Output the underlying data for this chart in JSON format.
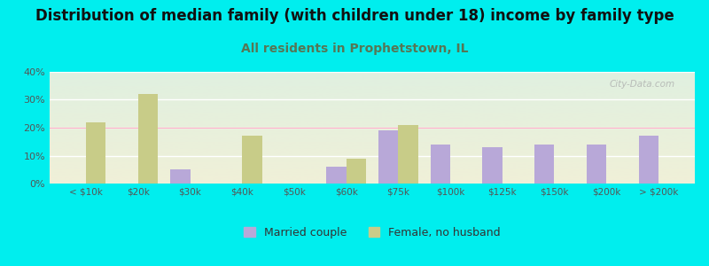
{
  "title": "Distribution of median family (with children under 18) income by family type",
  "subtitle": "All residents in Prophetstown, IL",
  "categories": [
    "< $10k",
    "$20k",
    "$30k",
    "$40k",
    "$50k",
    "$60k",
    "$75k",
    "$100k",
    "$125k",
    "$150k",
    "$200k",
    "> $200k"
  ],
  "married_couple": [
    0,
    0,
    5,
    0,
    0,
    6,
    19,
    14,
    13,
    14,
    14,
    17
  ],
  "female_no_husband": [
    22,
    32,
    0,
    17,
    0,
    9,
    21,
    0,
    0,
    0,
    0,
    0
  ],
  "married_color": "#b8a8d8",
  "female_color": "#c8cc88",
  "background_color": "#00eeee",
  "plot_bg_top": "#e0f0e0",
  "plot_bg_bottom": "#f0f0d8",
  "ylim": [
    0,
    40
  ],
  "yticks": [
    0,
    10,
    20,
    30,
    40
  ],
  "bar_width": 0.38,
  "title_fontsize": 12,
  "subtitle_fontsize": 10,
  "subtitle_color": "#557755",
  "watermark": "City-Data.com",
  "legend_married": "Married couple",
  "legend_female": "Female, no husband"
}
